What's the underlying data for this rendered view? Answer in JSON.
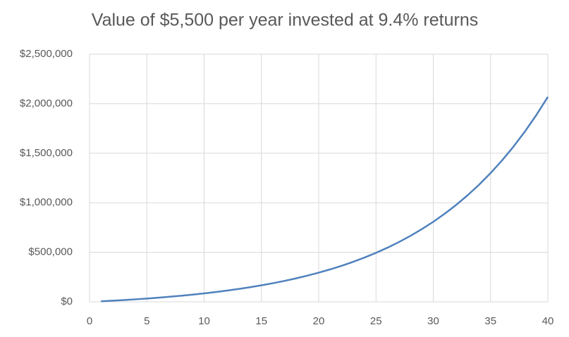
{
  "chart_data": {
    "type": "line",
    "title": "Value of $5,500 per year invested at 9.4% returns",
    "x": [
      1,
      2,
      3,
      4,
      5,
      6,
      7,
      8,
      9,
      10,
      11,
      12,
      13,
      14,
      15,
      16,
      17,
      18,
      19,
      20,
      21,
      22,
      23,
      24,
      25,
      26,
      27,
      28,
      29,
      30,
      31,
      32,
      33,
      34,
      35,
      36,
      37,
      38,
      39,
      40
    ],
    "series": [
      {
        "name": "Value",
        "color": "#4f81bd",
        "values": [
          5500,
          11517,
          18100,
          25301,
          33179,
          41798,
          51227,
          61543,
          72828,
          85174,
          98680,
          113455,
          129621,
          147305,
          166652,
          187817,
          210972,
          236302,
          264014,
          294333,
          327500,
          363785,
          403481,
          446909,
          494417,
          546391,
          603253,
          665457,
          733510,
          807960,
          889411,
          978515,
          1075985,
          1182630,
          1299306,
          1426938,
          1566569,
          1719325,
          1886447,
          2069260
        ]
      }
    ],
    "xlim": [
      0,
      40
    ],
    "xticks": [
      0,
      5,
      10,
      15,
      20,
      25,
      30,
      35,
      40
    ],
    "ylim": [
      0,
      2500000
    ],
    "yticks": [
      {
        "value": 0,
        "label": "$0"
      },
      {
        "value": 500000,
        "label": "$500,000"
      },
      {
        "value": 1000000,
        "label": "$1,000,000"
      },
      {
        "value": 1500000,
        "label": "$1,500,000"
      },
      {
        "value": 2000000,
        "label": "$2,000,000"
      },
      {
        "value": 2500000,
        "label": "$2,500,000"
      }
    ],
    "grid": true
  }
}
